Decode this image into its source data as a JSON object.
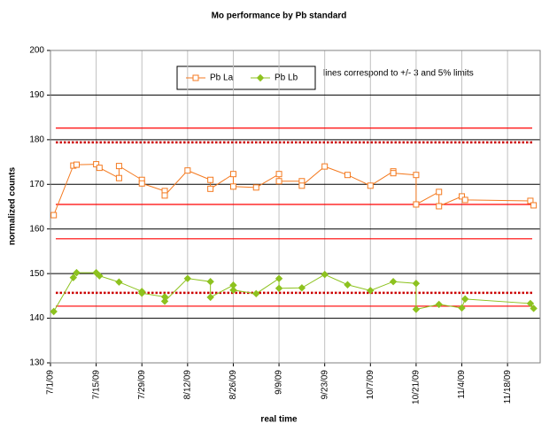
{
  "chart_data": {
    "type": "line",
    "title": "Mo performance by Pb standard",
    "x_label": "real time",
    "y_label": "normalized counts",
    "annotation": "lines correspond to +/- 3 and 5% limits",
    "xlim": [
      "2009-07-01",
      "2009-11-28"
    ],
    "xticks": [
      {
        "value": "2009-07-01",
        "label": "7/1/09"
      },
      {
        "value": "2009-07-15",
        "label": "7/15/09"
      },
      {
        "value": "2009-07-29",
        "label": "7/29/09"
      },
      {
        "value": "2009-08-12",
        "label": "8/12/09"
      },
      {
        "value": "2009-08-26",
        "label": "8/26/09"
      },
      {
        "value": "2009-09-09",
        "label": "9/9/09"
      },
      {
        "value": "2009-09-23",
        "label": "9/23/09"
      },
      {
        "value": "2009-10-07",
        "label": "10/7/09"
      },
      {
        "value": "2009-10-21",
        "label": "10/21/09"
      },
      {
        "value": "2009-11-04",
        "label": "11/4/09"
      },
      {
        "value": "2009-11-18",
        "label": "11/18/09"
      }
    ],
    "ylim": [
      130,
      200
    ],
    "yticks": [
      130,
      140,
      150,
      160,
      170,
      180,
      190,
      200
    ],
    "grid": true,
    "reference_lines": [
      {
        "value": 182.6,
        "color": "#ff0000",
        "style": "solid"
      },
      {
        "value": 179.4,
        "color": "#cc0000",
        "style": "dotted"
      },
      {
        "value": 165.5,
        "color": "#ff0000",
        "style": "solid"
      },
      {
        "value": 157.8,
        "color": "#ff0000",
        "style": "solid"
      },
      {
        "value": 145.7,
        "color": "#cc0000",
        "style": "dotted"
      },
      {
        "value": 142.7,
        "color": "#ff0000",
        "style": "solid"
      }
    ],
    "series": [
      {
        "name": "Pb La",
        "color": "#f47a20",
        "marker": "square",
        "x": [
          "2009-07-02",
          "2009-07-08",
          "2009-07-09",
          "2009-07-15",
          "2009-07-16",
          "2009-07-22",
          "2009-07-22",
          "2009-07-29",
          "2009-07-29",
          "2009-08-05",
          "2009-08-05",
          "2009-08-12",
          "2009-08-19",
          "2009-08-19",
          "2009-08-26",
          "2009-08-26",
          "2009-09-02",
          "2009-09-09",
          "2009-09-09",
          "2009-09-16",
          "2009-09-16",
          "2009-09-23",
          "2009-09-30",
          "2009-10-07",
          "2009-10-14",
          "2009-10-14",
          "2009-10-21",
          "2009-10-21",
          "2009-10-28",
          "2009-10-28",
          "2009-11-04",
          "2009-11-05",
          "2009-11-25",
          "2009-11-26"
        ],
        "values": [
          163.1,
          174.2,
          174.4,
          174.5,
          173.7,
          171.4,
          174.1,
          171.0,
          170.2,
          168.5,
          167.5,
          173.1,
          171.0,
          169.0,
          172.3,
          169.5,
          169.3,
          172.3,
          170.7,
          170.7,
          169.7,
          174.0,
          172.1,
          169.7,
          172.9,
          172.5,
          172.1,
          165.5,
          168.3,
          165.1,
          167.3,
          166.5,
          166.3,
          165.3
        ]
      },
      {
        "name": "Pb Lb",
        "color": "#8dc21f",
        "marker": "diamond",
        "x": [
          "2009-07-02",
          "2009-07-08",
          "2009-07-09",
          "2009-07-15",
          "2009-07-16",
          "2009-07-22",
          "2009-07-29",
          "2009-07-29",
          "2009-08-05",
          "2009-08-05",
          "2009-08-12",
          "2009-08-19",
          "2009-08-19",
          "2009-08-26",
          "2009-08-26",
          "2009-09-02",
          "2009-09-09",
          "2009-09-09",
          "2009-09-16",
          "2009-09-23",
          "2009-09-30",
          "2009-10-07",
          "2009-10-14",
          "2009-10-21",
          "2009-10-21",
          "2009-10-28",
          "2009-11-04",
          "2009-11-05",
          "2009-11-25",
          "2009-11-26"
        ],
        "values": [
          141.5,
          149.1,
          150.2,
          150.2,
          149.5,
          148.1,
          146.0,
          145.6,
          144.8,
          143.8,
          148.9,
          148.2,
          144.7,
          147.4,
          146.3,
          145.5,
          148.9,
          146.7,
          146.8,
          149.8,
          147.5,
          146.2,
          148.2,
          147.8,
          142.0,
          143.1,
          142.3,
          144.3,
          143.3,
          142.2
        ]
      }
    ]
  }
}
